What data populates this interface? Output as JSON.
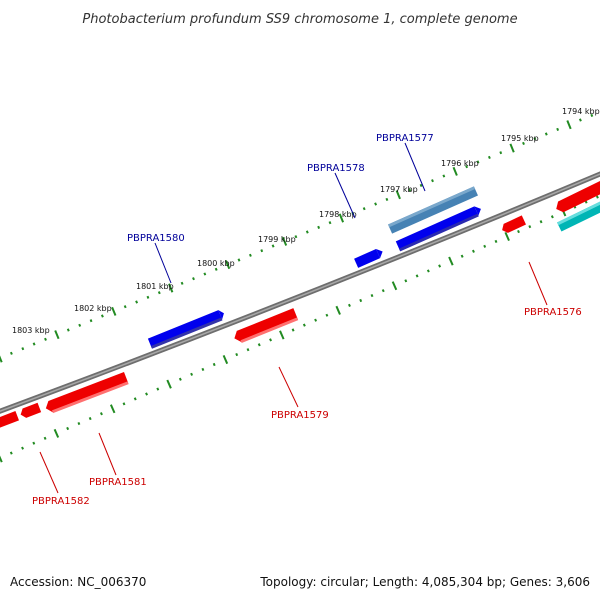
{
  "title": "Photobacterium profundum SS9 chromosome 1, complete genome",
  "footer": {
    "accession": "Accession: NC_006370",
    "summary": "Topology: circular; Length: 4,085,304 bp; Genes: 3,606"
  },
  "colors": {
    "forward_gene": "#0000ee",
    "reverse_gene": "#ee0000",
    "highlight_gene": "#4682b4",
    "rna_gene": "#00b5b5",
    "backbone": "#808080",
    "tick": "#228b22",
    "forward_label": "#000099",
    "reverse_label": "#cc0000"
  },
  "kbp_labels": [
    "1794 kbp",
    "1795 kbp",
    "1796 kbp",
    "1797 kbp",
    "1798 kbp",
    "1799 kbp",
    "1800 kbp",
    "1801 kbp",
    "1802 kbp",
    "1803 kbp"
  ],
  "gene_labels": {
    "forward": [
      "PBPRA1577",
      "PBPRA1578",
      "PBPRA1580"
    ],
    "reverse": [
      "PBPRA1576",
      "PBPRA1579",
      "PBPRA1581",
      "PBPRA1582"
    ]
  }
}
